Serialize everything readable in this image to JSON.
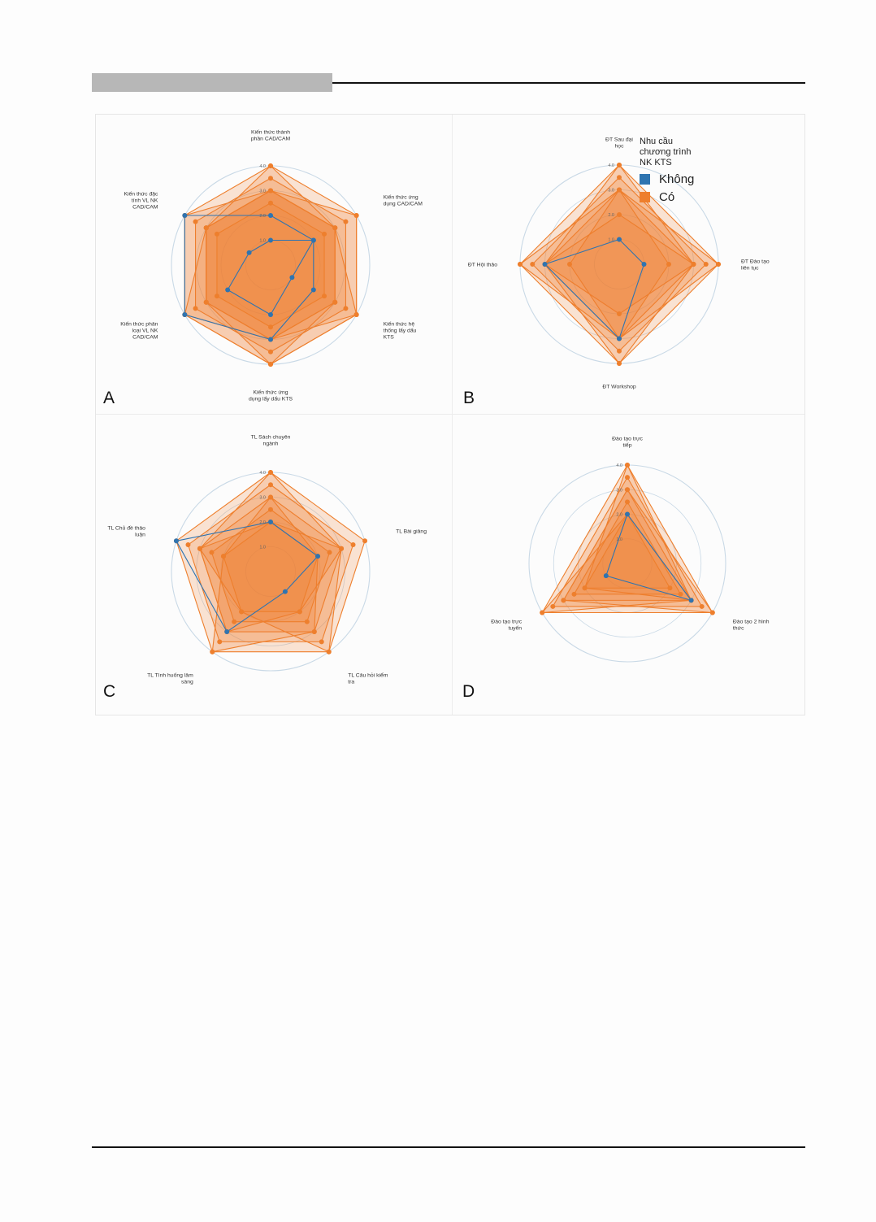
{
  "colors": {
    "khong": "#2f74b0",
    "co": "#ee7f2d",
    "grid": "#c9d9e6"
  },
  "legend": {
    "title": "Nhu cầu chương trình NK KTS",
    "items": [
      {
        "label": "Không",
        "color": "#2f74b0"
      },
      {
        "label": "Có",
        "color": "#ee7f2d"
      }
    ]
  },
  "chart_data": [
    {
      "type": "radar",
      "panel": "A",
      "axes": [
        "Kiến thức thành phần CAD/CAM",
        "Kiến thức ứng dụng CAD/CAM",
        "Kiến thức hệ thống lấy dấu KTS",
        "Kiến thức ứng dụng lấy dấu KTS",
        "Kiến thức phân loại VL NK CAD/CAM",
        "Kiến thức đặc tính VL NK CAD/CAM"
      ],
      "radial_ticks": [
        "1.0",
        "2.0",
        "3.0",
        "4.0"
      ],
      "rmax": 4,
      "series": [
        {
          "group": "Có",
          "values": [
            4,
            4,
            4,
            4,
            4,
            4
          ]
        },
        {
          "group": "Có",
          "values": [
            3,
            3,
            3,
            3,
            3,
            3
          ]
        },
        {
          "group": "Có",
          "values": [
            3.5,
            3.5,
            3.5,
            3.5,
            3.5,
            3.5
          ]
        },
        {
          "group": "Có",
          "values": [
            4,
            3,
            3,
            4,
            3,
            3
          ]
        },
        {
          "group": "Có",
          "values": [
            3,
            4,
            4,
            3,
            3,
            3
          ]
        },
        {
          "group": "Có",
          "values": [
            3,
            3,
            4,
            4,
            4,
            3
          ]
        },
        {
          "group": "Có",
          "values": [
            3,
            3,
            3,
            3,
            4,
            4
          ]
        },
        {
          "group": "Có",
          "values": [
            2.5,
            2.5,
            2.5,
            2.5,
            2.5,
            2.5
          ]
        },
        {
          "group": "Không",
          "values": [
            1,
            2,
            1,
            2,
            2,
            1
          ]
        },
        {
          "group": "Không",
          "values": [
            2,
            2,
            2,
            3,
            4,
            4
          ]
        }
      ]
    },
    {
      "type": "radar",
      "panel": "B",
      "axes": [
        "ĐT Sau đại học",
        "ĐT Đào tạo liên tục",
        "ĐT Workshop",
        "ĐT Hội thảo"
      ],
      "radial_ticks": [
        "1.0",
        "2.0",
        "3.0",
        "4.0"
      ],
      "rmax": 4,
      "series": [
        {
          "group": "Có",
          "values": [
            4,
            4,
            4,
            4
          ]
        },
        {
          "group": "Có",
          "values": [
            3,
            3,
            3,
            3
          ]
        },
        {
          "group": "Có",
          "values": [
            3.5,
            3.5,
            3.5,
            3.5
          ]
        },
        {
          "group": "Có",
          "values": [
            4,
            3,
            2,
            3
          ]
        },
        {
          "group": "Có",
          "values": [
            3,
            4,
            3,
            2
          ]
        },
        {
          "group": "Có",
          "values": [
            2,
            3,
            4,
            3
          ]
        },
        {
          "group": "Có",
          "values": [
            3,
            2,
            3,
            4
          ]
        },
        {
          "group": "Không",
          "values": [
            1,
            1,
            3,
            3
          ]
        }
      ]
    },
    {
      "type": "radar",
      "panel": "C",
      "axes": [
        "TL Sách chuyên ngành",
        "TL Bài giảng",
        "TL Câu hỏi kiểm tra",
        "TL Tình huống lâm sàng",
        "TL Chủ đề thảo luận"
      ],
      "radial_ticks": [
        "1.0",
        "2.0",
        "3.0",
        "4.0"
      ],
      "rmax": 4,
      "series": [
        {
          "group": "Có",
          "values": [
            4,
            4,
            4,
            4,
            4
          ]
        },
        {
          "group": "Có",
          "values": [
            3,
            3,
            3,
            3,
            3
          ]
        },
        {
          "group": "Có",
          "values": [
            3.5,
            3.5,
            3.5,
            3.5,
            3.5
          ]
        },
        {
          "group": "Có",
          "values": [
            4,
            3,
            2,
            3,
            3
          ]
        },
        {
          "group": "Có",
          "values": [
            2,
            3,
            4,
            2,
            3
          ]
        },
        {
          "group": "Có",
          "values": [
            3,
            2,
            3,
            4,
            2
          ]
        },
        {
          "group": "Có",
          "values": [
            2.5,
            2.5,
            2.5,
            2.5,
            2.5
          ]
        },
        {
          "group": "Có",
          "values": [
            2,
            2,
            2,
            2,
            2
          ]
        },
        {
          "group": "Không",
          "values": [
            2,
            2,
            1,
            3,
            4
          ]
        }
      ]
    },
    {
      "type": "radar",
      "panel": "D",
      "axes": [
        "Đào tạo trực tiếp",
        "Đào tạo 2 hình thức",
        "Đào tạo trực tuyến"
      ],
      "radial_ticks": [
        "1.0",
        "2.0",
        "3.0",
        "4.0"
      ],
      "rmax": 4,
      "series": [
        {
          "group": "Có",
          "values": [
            4,
            4,
            4
          ]
        },
        {
          "group": "Có",
          "values": [
            3,
            3,
            3
          ]
        },
        {
          "group": "Có",
          "values": [
            3.5,
            3.5,
            3.5
          ]
        },
        {
          "group": "Có",
          "values": [
            4,
            3,
            2
          ]
        },
        {
          "group": "Có",
          "values": [
            3,
            4,
            3
          ]
        },
        {
          "group": "Có",
          "values": [
            2,
            3,
            4
          ]
        },
        {
          "group": "Có",
          "values": [
            2.5,
            2.5,
            2.5
          ]
        },
        {
          "group": "Có",
          "values": [
            2,
            2,
            2
          ]
        },
        {
          "group": "Không",
          "values": [
            2,
            3,
            1
          ]
        }
      ]
    }
  ]
}
